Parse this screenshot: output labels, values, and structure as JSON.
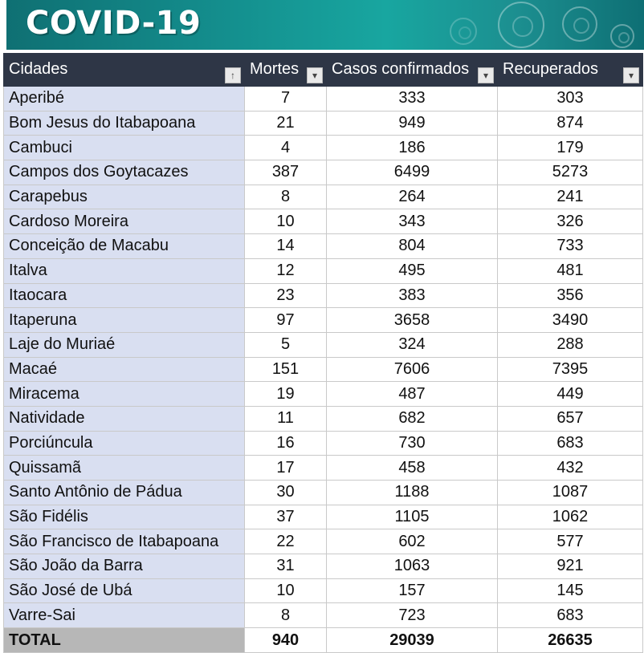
{
  "banner": {
    "title": "COVID-19"
  },
  "table": {
    "headers": {
      "city": "Cidades",
      "deaths": "Mortes",
      "confirmed": "Casos confirmados",
      "recovered": "Recuperados"
    },
    "sort_icon": "sort-ascending-icon",
    "filter_icon": "filter-dropdown-icon",
    "rows": [
      {
        "city": "Aperibé",
        "deaths": "7",
        "confirmed": "333",
        "recovered": "303"
      },
      {
        "city": "Bom Jesus do Itabapoana",
        "deaths": "21",
        "confirmed": "949",
        "recovered": "874"
      },
      {
        "city": "Cambuci",
        "deaths": "4",
        "confirmed": "186",
        "recovered": "179"
      },
      {
        "city": "Campos dos Goytacazes",
        "deaths": "387",
        "confirmed": "6499",
        "recovered": "5273"
      },
      {
        "city": "Carapebus",
        "deaths": "8",
        "confirmed": "264",
        "recovered": "241"
      },
      {
        "city": "Cardoso Moreira",
        "deaths": "10",
        "confirmed": "343",
        "recovered": "326"
      },
      {
        "city": "Conceição de Macabu",
        "deaths": "14",
        "confirmed": "804",
        "recovered": "733"
      },
      {
        "city": "Italva",
        "deaths": "12",
        "confirmed": "495",
        "recovered": "481"
      },
      {
        "city": "Itaocara",
        "deaths": "23",
        "confirmed": "383",
        "recovered": "356"
      },
      {
        "city": "Itaperuna",
        "deaths": "97",
        "confirmed": "3658",
        "recovered": "3490"
      },
      {
        "city": "Laje do Muriaé",
        "deaths": "5",
        "confirmed": "324",
        "recovered": "288"
      },
      {
        "city": "Macaé",
        "deaths": "151",
        "confirmed": "7606",
        "recovered": "7395"
      },
      {
        "city": "Miracema",
        "deaths": "19",
        "confirmed": "487",
        "recovered": "449"
      },
      {
        "city": "Natividade",
        "deaths": "11",
        "confirmed": "682",
        "recovered": "657"
      },
      {
        "city": "Porciúncula",
        "deaths": "16",
        "confirmed": "730",
        "recovered": "683"
      },
      {
        "city": "Quissamã",
        "deaths": "17",
        "confirmed": "458",
        "recovered": "432"
      },
      {
        "city": "Santo Antônio de Pádua",
        "deaths": "30",
        "confirmed": "1188",
        "recovered": "1087"
      },
      {
        "city": "São Fidélis",
        "deaths": "37",
        "confirmed": "1105",
        "recovered": "1062"
      },
      {
        "city": "São Francisco de Itabapoana",
        "deaths": "22",
        "confirmed": "602",
        "recovered": "577"
      },
      {
        "city": "São João da Barra",
        "deaths": "31",
        "confirmed": "1063",
        "recovered": "921"
      },
      {
        "city": "São José de Ubá",
        "deaths": "10",
        "confirmed": "157",
        "recovered": "145"
      },
      {
        "city": "Varre-Sai",
        "deaths": "8",
        "confirmed": "723",
        "recovered": "683"
      }
    ],
    "total": {
      "city": "TOTAL",
      "deaths": "940",
      "confirmed": "29039",
      "recovered": "26635"
    }
  },
  "colors": {
    "header_bg": "#2e3646",
    "city_cell_bg": "#d9dff1",
    "total_city_bg": "#b7b7b7",
    "banner_teal": "#18a6a0"
  }
}
